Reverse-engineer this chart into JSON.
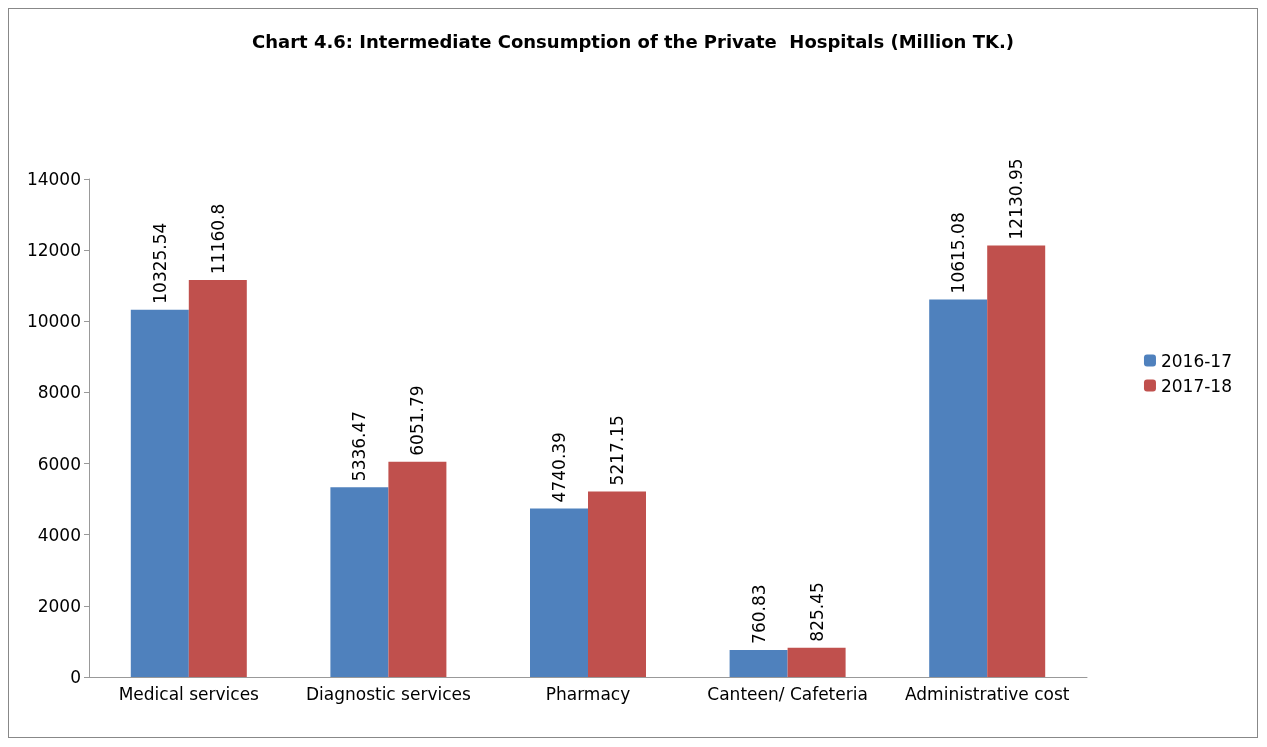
{
  "chart_data": {
    "type": "bar",
    "title": "Chart 4.6: Intermediate Consumption of the Private  Hospitals (Million TK.)",
    "categories": [
      "Medical services",
      "Diagnostic services",
      "Pharmacy",
      "Canteen/ Cafeteria",
      "Administrative cost"
    ],
    "series": [
      {
        "name": "2016-17",
        "color": "#4f81bd",
        "values": [
          10325.54,
          5336.47,
          4740.39,
          760.83,
          10615.08
        ]
      },
      {
        "name": "2017-18",
        "color": "#c0504d",
        "values": [
          11160.8,
          6051.79,
          5217.15,
          825.45,
          12130.95
        ]
      }
    ],
    "ylim": [
      0,
      14000
    ],
    "yticks": [
      0,
      2000,
      4000,
      6000,
      8000,
      10000,
      12000,
      14000
    ],
    "grid": false,
    "legend": "right",
    "data_labels": true
  }
}
